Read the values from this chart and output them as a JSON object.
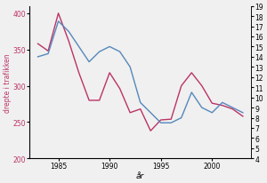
{
  "years": [
    1983,
    1984,
    1985,
    1986,
    1987,
    1988,
    1989,
    1990,
    1991,
    1992,
    1993,
    1994,
    1995,
    1996,
    1997,
    1998,
    1999,
    2000,
    2001,
    2002,
    2003
  ],
  "drepte": [
    358,
    348,
    400,
    362,
    318,
    280,
    280,
    318,
    296,
    263,
    268,
    238,
    253,
    254,
    300,
    318,
    300,
    276,
    273,
    268,
    258
  ],
  "rente": [
    14.0,
    14.3,
    17.5,
    16.5,
    15.0,
    13.5,
    14.5,
    15.0,
    14.5,
    13.0,
    9.5,
    8.5,
    7.5,
    7.5,
    8.0,
    10.5,
    9.0,
    8.5,
    9.5,
    9.0,
    8.5
  ],
  "left_color": "#bb3366",
  "right_color": "#5588bb",
  "left_ylabel": "drepte i trafikken",
  "bottom_xlabel": "år",
  "left_ylim": [
    200,
    410
  ],
  "right_ylim": [
    4,
    19
  ],
  "left_yticks": [
    200,
    250,
    300,
    350,
    400
  ],
  "right_yticks": [
    4,
    5,
    6,
    7,
    8,
    9,
    10,
    11,
    12,
    13,
    14,
    15,
    16,
    17,
    18,
    19
  ],
  "xticks": [
    1985,
    1990,
    1995,
    2000
  ],
  "xlim": [
    1982.2,
    2003.8
  ],
  "figsize": [
    3.0,
    2.07
  ],
  "dpi": 100,
  "bg_color": "#f0f0f0"
}
